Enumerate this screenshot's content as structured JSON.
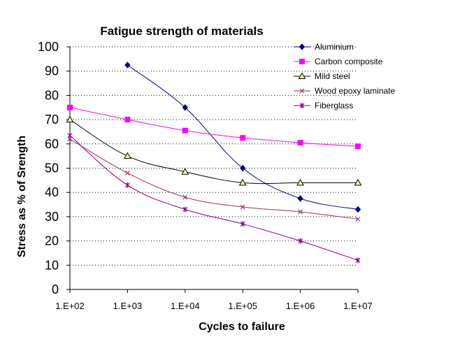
{
  "chart_data": {
    "type": "line",
    "title": "Fatigue strength of materials",
    "xlabel": "Cycles to failure",
    "ylabel": "Stress as % of Srength",
    "xscale": "log",
    "x": [
      100,
      1000,
      10000,
      100000,
      1000000,
      10000000
    ],
    "x_tick_labels": [
      "1.E+02",
      "1.E+03",
      "1.E+04",
      "1.E+05",
      "1.E+06",
      "1.E+07"
    ],
    "ylim": [
      0,
      100
    ],
    "y_ticks": [
      0,
      10,
      20,
      30,
      40,
      50,
      60,
      70,
      80,
      90,
      100
    ],
    "grid": "horizontal dotted",
    "legend_position": "top-right",
    "series": [
      {
        "name": "Aluminium",
        "color": "#000080",
        "marker": "diamond",
        "values": [
          null,
          92.5,
          75,
          50,
          37.5,
          33
        ]
      },
      {
        "name": "Carbon composite",
        "color": "#FF00FF",
        "marker": "square",
        "values": [
          75,
          70,
          65.5,
          62.5,
          60.5,
          59
        ]
      },
      {
        "name": "Mild steel",
        "color": "#000000",
        "marker": "triangle",
        "values": [
          70,
          55,
          48.5,
          44,
          44,
          44
        ]
      },
      {
        "name": "Wood epoxy laminate",
        "color": "#993366",
        "marker": "x",
        "values": [
          62,
          48,
          38,
          34,
          32,
          29
        ]
      },
      {
        "name": "Fiberglass",
        "color": "#800080",
        "marker": "star",
        "values": [
          63.5,
          43,
          33,
          27,
          20,
          12
        ]
      }
    ]
  }
}
